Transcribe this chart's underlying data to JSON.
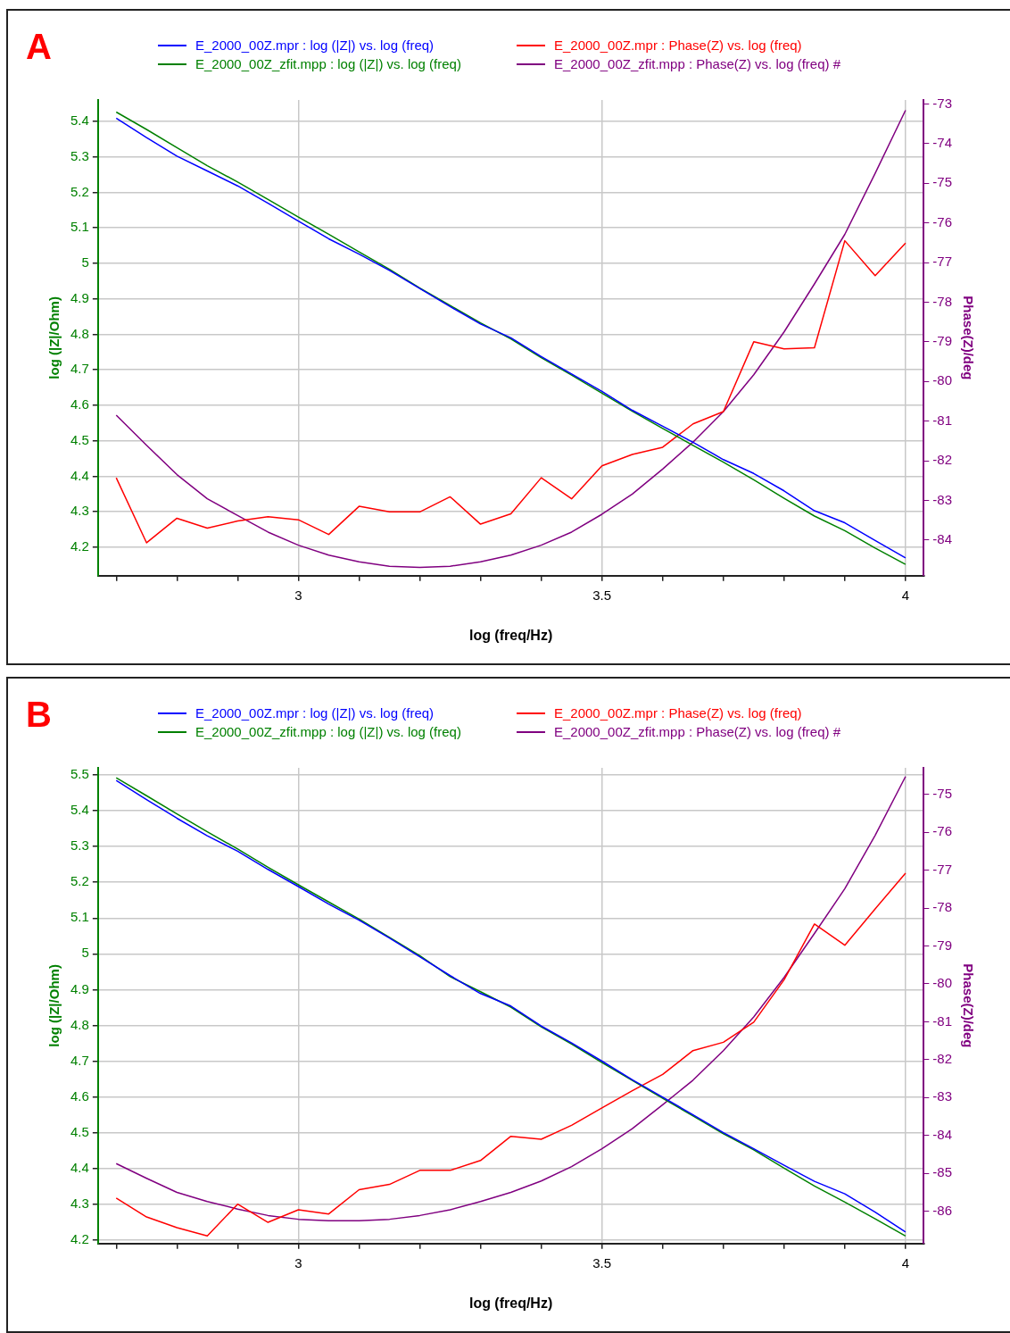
{
  "chart_data": [
    {
      "type": "line",
      "title": "A",
      "xlabel": "log (freq/Hz)",
      "ylabel": "log (|Z|/Ohm)",
      "y2label": "Phase(Z)/deg",
      "legend": "top",
      "grid": true,
      "x": [
        2.7,
        2.75,
        2.8,
        2.85,
        2.9,
        2.95,
        3.0,
        3.05,
        3.1,
        3.15,
        3.2,
        3.25,
        3.3,
        3.35,
        3.4,
        3.45,
        3.5,
        3.55,
        3.6,
        3.65,
        3.7,
        3.75,
        3.8,
        3.85,
        3.9,
        3.95,
        4.0
      ],
      "xlim": [
        2.67,
        4.03
      ],
      "xticks": [
        {
          "value": 2.7,
          "label": null
        },
        {
          "value": 2.8,
          "label": null
        },
        {
          "value": 2.9,
          "label": null
        },
        3,
        {
          "value": 3.1,
          "label": null
        },
        {
          "value": 3.2,
          "label": null
        },
        {
          "value": 3.3,
          "label": null
        },
        {
          "value": 3.4,
          "label": null
        },
        3.5,
        {
          "value": 3.6,
          "label": null
        },
        {
          "value": 3.7,
          "label": null
        },
        {
          "value": 3.8,
          "label": null
        },
        {
          "value": 3.9,
          "label": null
        },
        4
      ],
      "ylim": [
        4.12,
        5.46
      ],
      "yticks": [
        4.2,
        4.3,
        4.4,
        4.5,
        4.6,
        4.7,
        4.8,
        4.9,
        5,
        5.1,
        5.2,
        5.3,
        5.4
      ],
      "y2lim": [
        -84.9,
        -72.9
      ],
      "y2ticks": [
        -84,
        -83,
        -82,
        -81,
        -80,
        -79,
        -78,
        -77,
        -76,
        -75,
        -74,
        -73
      ],
      "series": [
        {
          "name": "E_2000_00Z.mpr : log (|Z|) vs. log (freq)",
          "color": "#0000ff",
          "values": [
            5.409,
            5.354,
            5.302,
            5.26,
            5.218,
            5.169,
            5.119,
            5.069,
            5.026,
            4.98,
            4.929,
            4.878,
            4.829,
            4.79,
            4.737,
            4.688,
            4.639,
            4.586,
            4.541,
            4.496,
            4.447,
            4.408,
            4.359,
            4.303,
            4.269,
            4.219,
            4.17
          ]
        },
        {
          "name": "E_2000_00Z_zfit.mpp : log (|Z|) vs. log (freq)",
          "color": "#008000",
          "values": [
            5.426,
            5.377,
            5.326,
            5.275,
            5.229,
            5.18,
            5.13,
            5.082,
            5.032,
            4.983,
            4.93,
            4.881,
            4.832,
            4.787,
            4.734,
            4.685,
            4.634,
            4.583,
            4.535,
            4.487,
            4.44,
            4.39,
            4.338,
            4.288,
            4.247,
            4.198,
            4.152
          ]
        },
        {
          "name": "E_2000_00Z.mpr : Phase(Z) vs. log (freq)",
          "color": "#ff0000",
          "axis": "y2",
          "values": [
            -82.43,
            -84.07,
            -83.45,
            -83.7,
            -83.52,
            -83.41,
            -83.49,
            -83.86,
            -83.15,
            -83.29,
            -83.29,
            -82.91,
            -83.6,
            -83.34,
            -82.43,
            -82.96,
            -82.13,
            -81.84,
            -81.66,
            -81.07,
            -80.76,
            -79.0,
            -79.18,
            -79.15,
            -76.45,
            -77.33,
            -76.51
          ]
        },
        {
          "name": "E_2000_00Z_zfit.mpp : Phase(Z) vs. log (freq) #",
          "color": "#800080",
          "axis": "y2",
          "values": [
            -80.85,
            -81.61,
            -82.35,
            -82.96,
            -83.38,
            -83.8,
            -84.13,
            -84.38,
            -84.55,
            -84.66,
            -84.69,
            -84.66,
            -84.55,
            -84.38,
            -84.13,
            -83.8,
            -83.35,
            -82.84,
            -82.21,
            -81.53,
            -80.76,
            -79.83,
            -78.75,
            -77.54,
            -76.29,
            -74.75,
            -73.16
          ]
        }
      ]
    },
    {
      "type": "line",
      "title": "B",
      "xlabel": "log (freq/Hz)",
      "ylabel": "log (|Z|/Ohm)",
      "y2label": "Phase(Z)/deg",
      "legend": "top",
      "grid": true,
      "x": [
        2.7,
        2.75,
        2.8,
        2.85,
        2.9,
        2.95,
        3.0,
        3.05,
        3.1,
        3.15,
        3.2,
        3.25,
        3.3,
        3.35,
        3.4,
        3.45,
        3.5,
        3.55,
        3.6,
        3.65,
        3.7,
        3.75,
        3.8,
        3.85,
        3.9,
        3.95,
        4.0
      ],
      "xlim": [
        2.67,
        4.03
      ],
      "xticks": [
        {
          "value": 2.7,
          "label": null
        },
        {
          "value": 2.8,
          "label": null
        },
        {
          "value": 2.9,
          "label": null
        },
        3,
        {
          "value": 3.1,
          "label": null
        },
        {
          "value": 3.2,
          "label": null
        },
        {
          "value": 3.3,
          "label": null
        },
        {
          "value": 3.4,
          "label": null
        },
        3.5,
        {
          "value": 3.6,
          "label": null
        },
        {
          "value": 3.7,
          "label": null
        },
        {
          "value": 3.8,
          "label": null
        },
        {
          "value": 3.9,
          "label": null
        },
        4
      ],
      "ylim": [
        4.19,
        5.52
      ],
      "yticks": [
        4.2,
        4.3,
        4.4,
        4.5,
        4.6,
        4.7,
        4.8,
        4.9,
        5,
        5.1,
        5.2,
        5.3,
        5.4,
        5.5
      ],
      "y2lim": [
        -86.85,
        -74.3
      ],
      "y2ticks": [
        -86,
        -85,
        -84,
        -83,
        -82,
        -81,
        -80,
        -79,
        -78,
        -77,
        -76,
        -75
      ],
      "series": [
        {
          "name": "E_2000_00Z.mpr : log (|Z|) vs. log (freq)",
          "color": "#0000ff",
          "values": [
            5.485,
            5.431,
            5.379,
            5.33,
            5.287,
            5.236,
            5.188,
            5.139,
            5.094,
            5.044,
            4.992,
            4.939,
            4.889,
            4.854,
            4.798,
            4.751,
            4.7,
            4.648,
            4.599,
            4.55,
            4.5,
            4.455,
            4.409,
            4.364,
            4.329,
            4.278,
            4.222
          ]
        },
        {
          "name": "E_2000_00Z_zfit.mpp : log (|Z|) vs. log (freq)",
          "color": "#008000",
          "values": [
            5.492,
            5.442,
            5.391,
            5.341,
            5.293,
            5.242,
            5.193,
            5.145,
            5.097,
            5.046,
            4.995,
            4.936,
            4.894,
            4.851,
            4.796,
            4.748,
            4.696,
            4.646,
            4.596,
            4.547,
            4.497,
            4.452,
            4.401,
            4.351,
            4.306,
            4.259,
            4.211
          ]
        },
        {
          "name": "E_2000_00Z.mpr : Phase(Z) vs. log (freq)",
          "color": "#ff0000",
          "axis": "y2",
          "values": [
            -85.65,
            -86.15,
            -86.43,
            -86.65,
            -85.81,
            -86.29,
            -85.96,
            -86.07,
            -85.43,
            -85.29,
            -84.92,
            -84.92,
            -84.66,
            -84.02,
            -84.1,
            -83.73,
            -83.27,
            -82.82,
            -82.39,
            -81.76,
            -81.54,
            -81.01,
            -79.89,
            -78.42,
            -78.98,
            -78.02,
            -77.08
          ]
        },
        {
          "name": "E_2000_00Z_zfit.mpp : Phase(Z) vs. log (freq) #",
          "color": "#800080",
          "axis": "y2",
          "values": [
            -84.74,
            -85.13,
            -85.5,
            -85.74,
            -85.94,
            -86.11,
            -86.21,
            -86.25,
            -86.25,
            -86.21,
            -86.11,
            -85.96,
            -85.74,
            -85.5,
            -85.2,
            -84.82,
            -84.35,
            -83.82,
            -83.19,
            -82.54,
            -81.76,
            -80.87,
            -79.83,
            -78.67,
            -77.49,
            -76.08,
            -74.53
          ]
        }
      ]
    }
  ]
}
